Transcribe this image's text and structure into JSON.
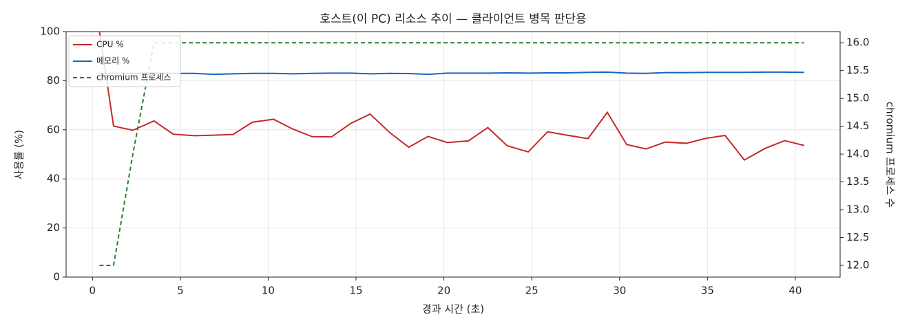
{
  "chart_data": {
    "type": "line",
    "title": "호스트(이 PC) 리소스 추이 — 클라이언트 병목 판단용",
    "x_label": "경과 시간 (초)",
    "y_label": "사용률 (%)",
    "y2_label": "chromium 프로세스 수",
    "x": [
      0.4,
      1.2,
      2.3,
      3.5,
      4.6,
      5.8,
      6.9,
      8.0,
      9.1,
      10.3,
      11.4,
      12.5,
      13.6,
      14.7,
      15.8,
      16.9,
      18.0,
      19.1,
      20.2,
      21.4,
      22.5,
      23.6,
      24.8,
      25.9,
      27.0,
      28.2,
      29.3,
      30.4,
      31.5,
      32.6,
      33.8,
      34.9,
      36.0,
      37.1,
      38.3,
      39.4,
      40.5
    ],
    "series": [
      {
        "name": "CPU %",
        "color": "#c62828",
        "linestyle": "solid",
        "values": [
          100,
          61.5,
          59.8,
          63.6,
          58.2,
          57.6,
          57.8,
          58.1,
          63.1,
          64.3,
          60.3,
          57.2,
          57.1,
          62.6,
          66.4,
          59.0,
          52.9,
          57.3,
          54.8,
          55.5,
          60.9,
          53.5,
          51.0,
          59.2,
          57.8,
          56.4,
          67.1,
          54.0,
          52.2,
          55.0,
          54.5,
          56.5,
          57.7,
          47.7,
          52.5,
          55.6,
          53.6
        ]
      },
      {
        "name": "메모리 %",
        "color": "#1565c0",
        "linestyle": "solid",
        "values": [
          83.0,
          83.0,
          83.0,
          83.1,
          83.0,
          83.0,
          82.6,
          82.8,
          83.0,
          83.0,
          82.8,
          83.0,
          83.1,
          83.1,
          82.8,
          83.0,
          82.9,
          82.6,
          83.1,
          83.1,
          83.1,
          83.2,
          83.1,
          83.2,
          83.2,
          83.4,
          83.5,
          83.1,
          83.0,
          83.3,
          83.3,
          83.4,
          83.4,
          83.4,
          83.5,
          83.5,
          83.4
        ]
      },
      {
        "name": "chromium 프로세스",
        "color": "#2e7d32",
        "linestyle": "dashed",
        "axis": "y2",
        "values": [
          12,
          12,
          14,
          16,
          16,
          16,
          16,
          16,
          16,
          16,
          16,
          16,
          16,
          16,
          16,
          16,
          16,
          16,
          16,
          16,
          16,
          16,
          16,
          16,
          16,
          16,
          16,
          16,
          16,
          16,
          16,
          16,
          16,
          16,
          16,
          16,
          16
        ]
      }
    ],
    "xlim": [
      -1.5,
      42.55
    ],
    "xticks": [
      0,
      5,
      10,
      15,
      20,
      25,
      30,
      35,
      40
    ],
    "ylim": [
      0,
      100
    ],
    "yticks": [
      0,
      20,
      40,
      60,
      80,
      100
    ],
    "y2lim": [
      11.79,
      16.2
    ],
    "y2ticks": [
      {
        "value": 12,
        "label": "12.0"
      },
      12.5,
      {
        "value": 13,
        "label": "13.0"
      },
      13.5,
      {
        "value": 14,
        "label": "14.0"
      },
      14.5,
      {
        "value": 15,
        "label": "15.0"
      },
      15.5,
      {
        "value": 16,
        "label": "16.0"
      }
    ],
    "grid": true,
    "legend": "upper left"
  }
}
